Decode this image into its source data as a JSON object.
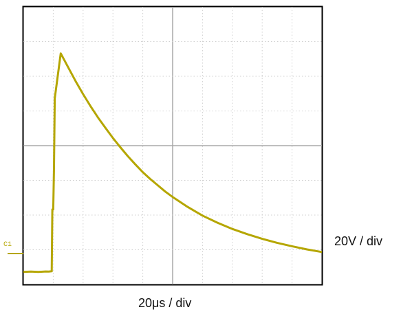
{
  "chart_data": {
    "type": "line",
    "channel_label": "C1",
    "x_scale_label": "20μs / div",
    "y_scale_label": "20V / div",
    "divisions": {
      "x": 10,
      "y": 8
    },
    "x_unit": "μs",
    "y_unit": "V",
    "xlim": [
      0,
      200
    ],
    "ylim": [
      -7.2,
      152.8
    ],
    "grid": true,
    "trace_color": "#b5a600",
    "series": [
      {
        "x": [
          0,
          5,
          10,
          15,
          17,
          19,
          19.4,
          20,
          20.5,
          21,
          25,
          30,
          35,
          40,
          45,
          50,
          55,
          60,
          65,
          70,
          75,
          80,
          85,
          90,
          95,
          100,
          110,
          120,
          130,
          140,
          150,
          160,
          170,
          180,
          190,
          200
        ],
        "y": [
          0,
          0.2,
          0,
          0.3,
          0.2,
          0.4,
          36,
          36,
          60,
          100,
          126,
          118,
          110,
          102.5,
          95.5,
          89,
          83,
          77.2,
          71.8,
          66.7,
          62,
          57.5,
          53.6,
          50,
          46.4,
          43.2,
          37.5,
          32.5,
          28.4,
          24.8,
          21.8,
          19.1,
          16.8,
          14.8,
          13,
          11.5
        ]
      }
    ]
  }
}
